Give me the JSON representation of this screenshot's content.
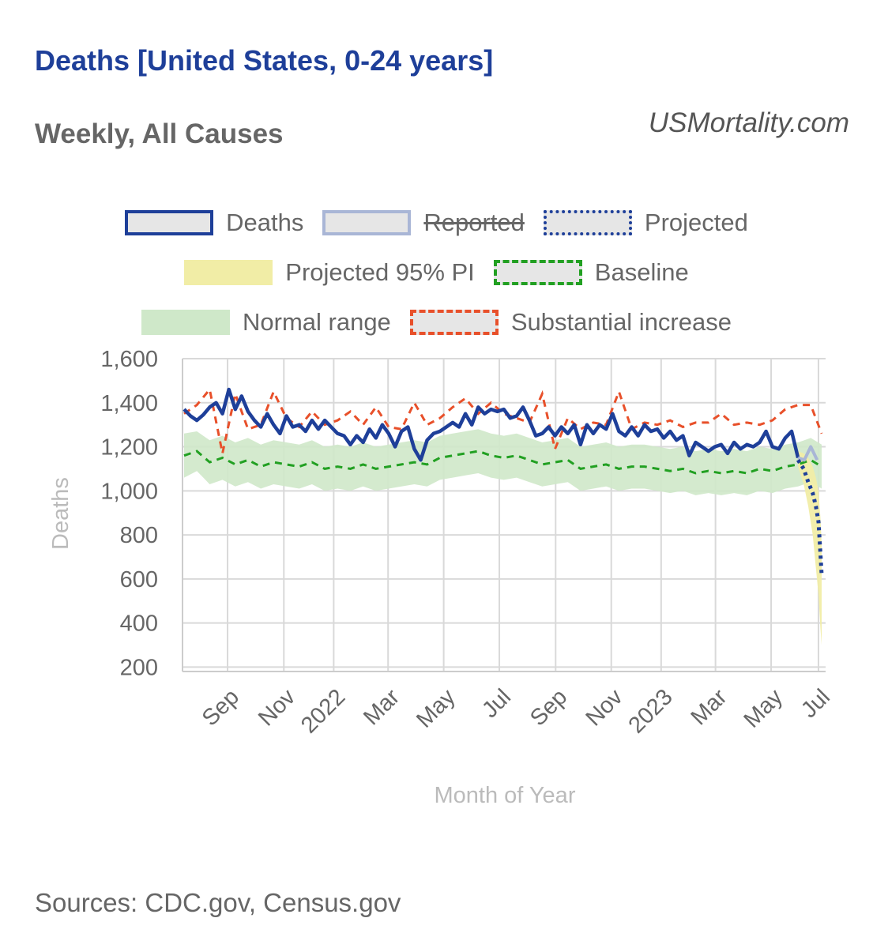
{
  "title": "Deaths [United States, 0-24 years]",
  "subtitle": "Weekly, All Causes",
  "site": "USMortality.com",
  "source": "Sources: CDC.gov, Census.gov",
  "legend": {
    "deaths": "Deaths",
    "reported": "Reported",
    "projected": "Projected",
    "pi": "Projected 95% PI",
    "baseline": "Baseline",
    "normal": "Normal range",
    "increase": "Substantial increase"
  },
  "colors": {
    "deaths": "#1e3f99",
    "reported": "#a9b6d6",
    "baseline": "#22a022",
    "normal": "#cfe8c9",
    "increase": "#e8502a",
    "pi": "#f1eda6"
  },
  "chart_data": {
    "type": "line",
    "title": "Deaths [United States, 0-24 years]",
    "xlabel": "Month of Year",
    "ylabel": "Deaths",
    "ylim": [
      180,
      1600
    ],
    "xlim": [
      0,
      99.7
    ],
    "yticks": [
      1600,
      1400,
      1200,
      1000,
      800,
      600,
      400,
      200
    ],
    "ytick_labels": [
      "1,600",
      "1,400",
      "1,200",
      "1,000",
      "800",
      "600",
      "400",
      "200"
    ],
    "xticks": [
      {
        "label": "Sep",
        "week": 6.8
      },
      {
        "label": "Nov",
        "week": 15.6
      },
      {
        "label": "2022",
        "week": 23.4
      },
      {
        "label": "Mar",
        "week": 31.9
      },
      {
        "label": "May",
        "week": 40.6
      },
      {
        "label": "Jul",
        "week": 49.3
      },
      {
        "label": "Sep",
        "week": 58.1
      },
      {
        "label": "Nov",
        "week": 66.8
      },
      {
        "label": "2023",
        "week": 74.6
      },
      {
        "label": "Mar",
        "week": 83.1
      },
      {
        "label": "May",
        "week": 91.8
      },
      {
        "label": "Jul",
        "week": 99.2
      }
    ],
    "series": [
      {
        "name": "Deaths",
        "weeks": [
          0,
          1,
          2,
          3,
          4,
          5,
          6,
          7,
          8,
          9,
          10,
          11,
          12,
          13,
          14,
          15,
          16,
          17,
          18,
          19,
          20,
          21,
          22,
          23,
          24,
          25,
          26,
          27,
          28,
          29,
          30,
          31,
          32,
          33,
          34,
          35,
          36,
          37,
          38,
          39,
          40,
          41,
          42,
          43,
          44,
          45,
          46,
          47,
          48,
          49,
          50,
          51,
          52,
          53,
          54,
          55,
          56,
          57,
          58,
          59,
          60,
          61,
          62,
          63,
          64,
          65,
          66,
          67,
          68,
          69,
          70,
          71,
          72,
          73,
          74,
          75,
          76,
          77,
          78,
          79,
          80,
          81,
          82,
          83,
          84,
          85,
          86,
          87,
          88,
          89,
          90,
          91,
          92,
          93,
          94,
          95,
          96
        ],
        "values": [
          1370,
          1340,
          1320,
          1345,
          1380,
          1400,
          1350,
          1460,
          1370,
          1430,
          1360,
          1320,
          1290,
          1350,
          1300,
          1260,
          1340,
          1290,
          1300,
          1270,
          1320,
          1280,
          1320,
          1290,
          1260,
          1250,
          1210,
          1250,
          1220,
          1280,
          1240,
          1300,
          1260,
          1200,
          1270,
          1290,
          1190,
          1140,
          1230,
          1260,
          1270,
          1290,
          1310,
          1290,
          1350,
          1300,
          1380,
          1350,
          1370,
          1360,
          1370,
          1330,
          1340,
          1380,
          1320,
          1250,
          1260,
          1290,
          1250,
          1290,
          1260,
          1300,
          1210,
          1300,
          1260,
          1300,
          1280,
          1350,
          1270,
          1250,
          1290,
          1250,
          1300,
          1270,
          1280,
          1240,
          1270,
          1230,
          1250,
          1160,
          1220,
          1200,
          1180,
          1200,
          1210,
          1170,
          1220,
          1190,
          1210,
          1200,
          1220,
          1270,
          1200,
          1190,
          1240,
          1270,
          1150
        ]
      },
      {
        "name": "Deaths (recent)",
        "weeks": [
          96,
          97,
          98,
          99
        ],
        "values": [
          1150,
          1140,
          1200,
          1140
        ]
      },
      {
        "name": "Projected",
        "weeks": [
          96,
          96.9,
          97.6,
          98.3,
          98.8,
          99.2,
          99.5,
          99.7
        ],
        "values": [
          1140,
          1100,
          1040,
          990,
          930,
          860,
          720,
          620
        ]
      },
      {
        "name": "Baseline",
        "weeks": [
          0,
          2,
          4,
          6,
          8,
          10,
          12,
          14,
          16,
          18,
          20,
          22,
          24,
          26,
          28,
          30,
          32,
          34,
          36,
          38,
          40,
          42,
          44,
          46,
          48,
          50,
          52,
          54,
          56,
          58,
          60,
          62,
          64,
          66,
          68,
          70,
          72,
          74,
          76,
          78,
          80,
          82,
          84,
          86,
          88,
          90,
          92,
          94,
          96,
          98,
          99.7
        ],
        "values": [
          1160,
          1180,
          1130,
          1150,
          1120,
          1140,
          1110,
          1130,
          1120,
          1110,
          1130,
          1100,
          1110,
          1100,
          1120,
          1100,
          1110,
          1120,
          1130,
          1120,
          1150,
          1160,
          1170,
          1180,
          1160,
          1150,
          1160,
          1140,
          1120,
          1130,
          1140,
          1100,
          1110,
          1120,
          1100,
          1110,
          1110,
          1100,
          1090,
          1100,
          1080,
          1090,
          1080,
          1090,
          1080,
          1100,
          1090,
          1110,
          1120,
          1140,
          1110
        ]
      },
      {
        "name": "Substantial increase",
        "weeks": [
          0,
          2,
          4,
          6,
          8,
          10,
          12,
          14,
          16,
          18,
          20,
          22,
          24,
          26,
          28,
          30,
          32,
          34,
          36,
          38,
          40,
          42,
          44,
          46,
          48,
          50,
          52,
          54,
          56,
          58,
          60,
          62,
          64,
          66,
          68,
          70,
          72,
          74,
          76,
          78,
          80,
          82,
          84,
          86,
          88,
          90,
          92,
          94,
          96,
          98,
          99.7
        ],
        "values": [
          1350,
          1390,
          1460,
          1170,
          1440,
          1280,
          1300,
          1450,
          1330,
          1290,
          1360,
          1300,
          1320,
          1360,
          1300,
          1380,
          1290,
          1280,
          1400,
          1300,
          1330,
          1380,
          1420,
          1350,
          1400,
          1350,
          1330,
          1310,
          1440,
          1190,
          1330,
          1280,
          1310,
          1300,
          1450,
          1280,
          1310,
          1300,
          1320,
          1290,
          1310,
          1310,
          1350,
          1300,
          1310,
          1300,
          1320,
          1370,
          1390,
          1390,
          1260
        ]
      },
      {
        "name": "Normal range",
        "weeks": [
          0,
          2,
          4,
          6,
          8,
          10,
          12,
          14,
          16,
          18,
          20,
          22,
          24,
          26,
          28,
          30,
          32,
          34,
          36,
          38,
          40,
          42,
          44,
          46,
          48,
          50,
          52,
          54,
          56,
          58,
          60,
          62,
          64,
          66,
          68,
          70,
          72,
          74,
          76,
          78,
          80,
          82,
          84,
          86,
          88,
          90,
          92,
          94,
          96,
          98,
          99.7
        ],
        "upper": [
          1260,
          1270,
          1230,
          1250,
          1220,
          1240,
          1210,
          1230,
          1220,
          1210,
          1230,
          1200,
          1210,
          1200,
          1220,
          1200,
          1210,
          1220,
          1230,
          1220,
          1250,
          1260,
          1270,
          1280,
          1260,
          1250,
          1260,
          1240,
          1220,
          1230,
          1240,
          1200,
          1210,
          1220,
          1200,
          1210,
          1210,
          1200,
          1190,
          1200,
          1180,
          1190,
          1180,
          1190,
          1180,
          1200,
          1190,
          1210,
          1220,
          1240,
          1210
        ],
        "lower": [
          1060,
          1090,
          1030,
          1050,
          1020,
          1040,
          1010,
          1030,
          1020,
          1010,
          1030,
          1000,
          1010,
          1000,
          1020,
          1000,
          1010,
          1020,
          1030,
          1020,
          1050,
          1060,
          1070,
          1080,
          1060,
          1050,
          1060,
          1040,
          1020,
          1030,
          1040,
          1000,
          1010,
          1020,
          1000,
          1010,
          1010,
          1000,
          990,
          1000,
          980,
          990,
          980,
          990,
          980,
          1000,
          990,
          1010,
          1020,
          1040,
          1010
        ]
      },
      {
        "name": "Projected 95% PI",
        "weeks": [
          96,
          96.9,
          97.6,
          98.3,
          98.8,
          99.2,
          99.5,
          99.7
        ],
        "upper": [
          1180,
          1170,
          1150,
          1110,
          1060,
          1000,
          880,
          760
        ],
        "lower": [
          1110,
          1030,
          930,
          800,
          650,
          530,
          380,
          300
        ]
      }
    ]
  }
}
